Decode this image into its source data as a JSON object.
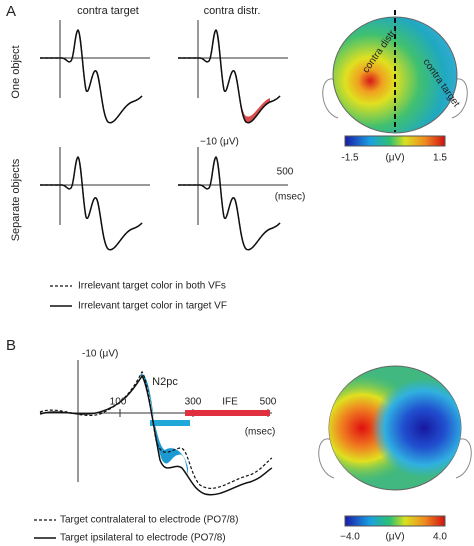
{
  "panel_a": {
    "label": "A",
    "columns": [
      "contra target",
      "contra distr."
    ],
    "rows": [
      "One object",
      "Separate objects"
    ],
    "scale_label": "−10 (μV)",
    "time_tick": "500",
    "time_unit": "(msec)",
    "legend": [
      "Irrelevant target color in both VFs",
      "Irrelevant target color in target VF"
    ],
    "map": {
      "left_label": "contra distr.",
      "right_label": "contra target",
      "colorbar": {
        "min": "-1.5",
        "unit": "(μV)",
        "max": "1.5"
      }
    }
  },
  "panel_b": {
    "label": "B",
    "scale_label": "-10 (μV)",
    "component": "N2pc",
    "ticks": [
      "100",
      "300",
      "500"
    ],
    "window_label": "IFE",
    "time_unit": "(msec)",
    "legend": [
      "Target contralateral to electrode (PO7/8)",
      "Target ipsilateral to electrode (PO7/8)"
    ],
    "map": {
      "colorbar": {
        "min": "−4.0",
        "unit": "(μV)",
        "max": "4.0"
      }
    }
  }
}
